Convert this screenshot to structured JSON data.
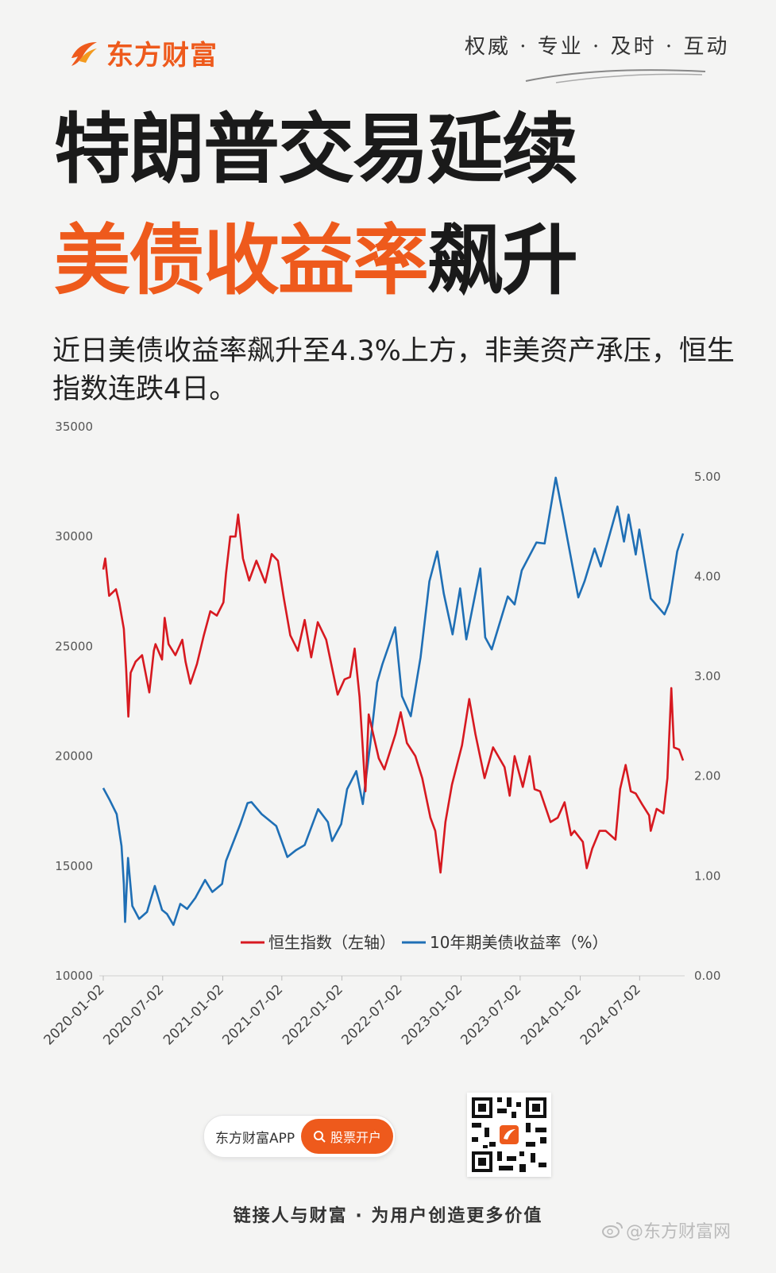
{
  "header": {
    "logo_text": "东方财富",
    "slogan": "权威 · 专业 · 及时 · 互动"
  },
  "headline": {
    "line1": "特朗普交易延续",
    "line2_highlight": "美债收益率",
    "line2_rest": "飙升"
  },
  "subtitle": "近日美债收益率飙升至4.3%上方，非美资产承压，恒生指数连跌4日。",
  "colors": {
    "brand_orange": "#ee5a1c",
    "hsi_red": "#d71920",
    "yield_blue": "#1f6fb5"
  },
  "chart_data": {
    "type": "line",
    "x_ticks": [
      "2020-01-02",
      "2020-07-02",
      "2021-01-02",
      "2021-07-02",
      "2022-01-02",
      "2022-07-02",
      "2023-01-02",
      "2023-07-02",
      "2024-01-02",
      "2024-07-02"
    ],
    "left_axis": {
      "ylim": [
        10000,
        35000
      ],
      "ticks": [
        "35000",
        "30000",
        "25000",
        "20000",
        "15000",
        "10000"
      ]
    },
    "right_axis": {
      "ylim": [
        0,
        5.5
      ],
      "ticks": [
        "5.00",
        "4.00",
        "3.00",
        "2.00",
        "1.00",
        "0.00"
      ]
    },
    "legend": [
      "恒生指数（左轴）",
      "10年期美债收益率（%）"
    ],
    "legend_placement": "bottom-center",
    "grid": false,
    "series": [
      {
        "name": "恒生指数（左轴）",
        "axis": "left",
        "color": "#d71920",
        "points": [
          [
            "2020-01-02",
            28500
          ],
          [
            "2020-01-08",
            29000
          ],
          [
            "2020-01-20",
            27300
          ],
          [
            "2020-02-10",
            27600
          ],
          [
            "2020-02-20",
            27000
          ],
          [
            "2020-03-05",
            25800
          ],
          [
            "2020-03-12",
            24000
          ],
          [
            "2020-03-19",
            21800
          ],
          [
            "2020-03-26",
            23800
          ],
          [
            "2020-04-10",
            24300
          ],
          [
            "2020-04-30",
            24600
          ],
          [
            "2020-05-22",
            22900
          ],
          [
            "2020-06-05",
            24800
          ],
          [
            "2020-06-10",
            25100
          ],
          [
            "2020-06-30",
            24400
          ],
          [
            "2020-07-08",
            26300
          ],
          [
            "2020-07-20",
            25100
          ],
          [
            "2020-08-10",
            24600
          ],
          [
            "2020-08-31",
            25300
          ],
          [
            "2020-09-10",
            24300
          ],
          [
            "2020-09-25",
            23300
          ],
          [
            "2020-10-15",
            24200
          ],
          [
            "2020-11-05",
            25500
          ],
          [
            "2020-11-25",
            26600
          ],
          [
            "2020-12-15",
            26400
          ],
          [
            "2021-01-04",
            27000
          ],
          [
            "2021-01-12",
            28300
          ],
          [
            "2021-01-25",
            30000
          ],
          [
            "2021-02-10",
            30000
          ],
          [
            "2021-02-18",
            31000
          ],
          [
            "2021-03-05",
            29000
          ],
          [
            "2021-03-24",
            28000
          ],
          [
            "2021-04-15",
            28900
          ],
          [
            "2021-05-12",
            27900
          ],
          [
            "2021-06-01",
            29200
          ],
          [
            "2021-06-20",
            28900
          ],
          [
            "2021-07-08",
            27200
          ],
          [
            "2021-07-28",
            25500
          ],
          [
            "2021-08-20",
            24800
          ],
          [
            "2021-09-10",
            26200
          ],
          [
            "2021-09-30",
            24500
          ],
          [
            "2021-10-20",
            26100
          ],
          [
            "2021-11-15",
            25300
          ],
          [
            "2021-12-20",
            22800
          ],
          [
            "2022-01-10",
            23500
          ],
          [
            "2022-01-27",
            23600
          ],
          [
            "2022-02-10",
            24900
          ],
          [
            "2022-02-25",
            22700
          ],
          [
            "2022-03-15",
            18400
          ],
          [
            "2022-03-25",
            21900
          ],
          [
            "2022-04-25",
            19900
          ],
          [
            "2022-05-12",
            19400
          ],
          [
            "2022-06-15",
            21000
          ],
          [
            "2022-07-01",
            22000
          ],
          [
            "2022-07-20",
            20600
          ],
          [
            "2022-08-15",
            20000
          ],
          [
            "2022-09-05",
            19000
          ],
          [
            "2022-09-30",
            17200
          ],
          [
            "2022-10-15",
            16600
          ],
          [
            "2022-10-31",
            14700
          ],
          [
            "2022-11-15",
            17000
          ],
          [
            "2022-12-05",
            18700
          ],
          [
            "2023-01-05",
            20500
          ],
          [
            "2023-01-27",
            22600
          ],
          [
            "2023-02-15",
            21000
          ],
          [
            "2023-03-15",
            19000
          ],
          [
            "2023-04-10",
            20400
          ],
          [
            "2023-05-15",
            19500
          ],
          [
            "2023-05-31",
            18200
          ],
          [
            "2023-06-15",
            20000
          ],
          [
            "2023-07-10",
            18600
          ],
          [
            "2023-07-31",
            20000
          ],
          [
            "2023-08-15",
            18500
          ],
          [
            "2023-09-01",
            18400
          ],
          [
            "2023-10-03",
            17000
          ],
          [
            "2023-10-25",
            17200
          ],
          [
            "2023-11-15",
            17900
          ],
          [
            "2023-12-05",
            16400
          ],
          [
            "2023-12-15",
            16600
          ],
          [
            "2024-01-10",
            16100
          ],
          [
            "2024-01-22",
            14900
          ],
          [
            "2024-02-08",
            15800
          ],
          [
            "2024-03-01",
            16600
          ],
          [
            "2024-03-20",
            16600
          ],
          [
            "2024-04-19",
            16200
          ],
          [
            "2024-05-03",
            18500
          ],
          [
            "2024-05-20",
            19600
          ],
          [
            "2024-06-05",
            18400
          ],
          [
            "2024-06-20",
            18300
          ],
          [
            "2024-07-10",
            17800
          ],
          [
            "2024-07-31",
            17300
          ],
          [
            "2024-08-05",
            16600
          ],
          [
            "2024-08-23",
            17600
          ],
          [
            "2024-09-13",
            17400
          ],
          [
            "2024-09-25",
            19000
          ],
          [
            "2024-10-07",
            23100
          ],
          [
            "2024-10-15",
            20400
          ],
          [
            "2024-10-31",
            20300
          ],
          [
            "2024-11-12",
            19800
          ]
        ]
      },
      {
        "name": "10年期美债收益率（%）",
        "axis": "right",
        "color": "#1f6fb5",
        "points": [
          [
            "2020-01-02",
            1.88
          ],
          [
            "2020-01-22",
            1.76
          ],
          [
            "2020-02-12",
            1.62
          ],
          [
            "2020-02-27",
            1.3
          ],
          [
            "2020-03-05",
            0.92
          ],
          [
            "2020-03-09",
            0.54
          ],
          [
            "2020-03-18",
            1.18
          ],
          [
            "2020-03-31",
            0.7
          ],
          [
            "2020-04-21",
            0.57
          ],
          [
            "2020-05-15",
            0.64
          ],
          [
            "2020-06-08",
            0.9
          ],
          [
            "2020-06-30",
            0.66
          ],
          [
            "2020-07-15",
            0.62
          ],
          [
            "2020-08-04",
            0.51
          ],
          [
            "2020-08-25",
            0.72
          ],
          [
            "2020-09-15",
            0.67
          ],
          [
            "2020-10-10",
            0.78
          ],
          [
            "2020-11-09",
            0.96
          ],
          [
            "2020-12-01",
            0.84
          ],
          [
            "2020-12-31",
            0.92
          ],
          [
            "2021-01-12",
            1.15
          ],
          [
            "2021-02-25",
            1.52
          ],
          [
            "2021-03-19",
            1.73
          ],
          [
            "2021-03-31",
            1.74
          ],
          [
            "2021-05-01",
            1.62
          ],
          [
            "2021-06-15",
            1.5
          ],
          [
            "2021-07-19",
            1.19
          ],
          [
            "2021-08-15",
            1.26
          ],
          [
            "2021-09-10",
            1.31
          ],
          [
            "2021-10-21",
            1.67
          ],
          [
            "2021-11-20",
            1.54
          ],
          [
            "2021-12-03",
            1.35
          ],
          [
            "2021-12-31",
            1.52
          ],
          [
            "2022-01-18",
            1.87
          ],
          [
            "2022-02-15",
            2.05
          ],
          [
            "2022-03-07",
            1.72
          ],
          [
            "2022-03-31",
            2.35
          ],
          [
            "2022-04-20",
            2.94
          ],
          [
            "2022-05-06",
            3.12
          ],
          [
            "2022-06-14",
            3.49
          ],
          [
            "2022-07-05",
            2.8
          ],
          [
            "2022-08-01",
            2.6
          ],
          [
            "2022-08-31",
            3.19
          ],
          [
            "2022-09-27",
            3.95
          ],
          [
            "2022-10-21",
            4.25
          ],
          [
            "2022-11-10",
            3.83
          ],
          [
            "2022-12-07",
            3.42
          ],
          [
            "2022-12-30",
            3.88
          ],
          [
            "2023-01-18",
            3.37
          ],
          [
            "2023-03-02",
            4.08
          ],
          [
            "2023-03-17",
            3.39
          ],
          [
            "2023-04-06",
            3.27
          ],
          [
            "2023-05-25",
            3.8
          ],
          [
            "2023-06-15",
            3.72
          ],
          [
            "2023-07-07",
            4.06
          ],
          [
            "2023-08-21",
            4.34
          ],
          [
            "2023-09-15",
            4.33
          ],
          [
            "2023-10-19",
            4.99
          ],
          [
            "2023-11-10",
            4.62
          ],
          [
            "2023-12-27",
            3.79
          ],
          [
            "2024-01-15",
            3.95
          ],
          [
            "2024-02-15",
            4.28
          ],
          [
            "2024-03-05",
            4.1
          ],
          [
            "2024-04-25",
            4.7
          ],
          [
            "2024-05-15",
            4.35
          ],
          [
            "2024-05-29",
            4.62
          ],
          [
            "2024-06-20",
            4.22
          ],
          [
            "2024-07-01",
            4.47
          ],
          [
            "2024-08-05",
            3.78
          ],
          [
            "2024-09-16",
            3.62
          ],
          [
            "2024-10-01",
            3.74
          ],
          [
            "2024-10-25",
            4.25
          ],
          [
            "2024-11-12",
            4.43
          ]
        ]
      }
    ]
  },
  "bottom": {
    "app_name": "东方财富APP",
    "open_account_label": "股票开户",
    "tagline": "链接人与财富 · 为用户创造更多价值",
    "watermark": "@东方财富网"
  }
}
